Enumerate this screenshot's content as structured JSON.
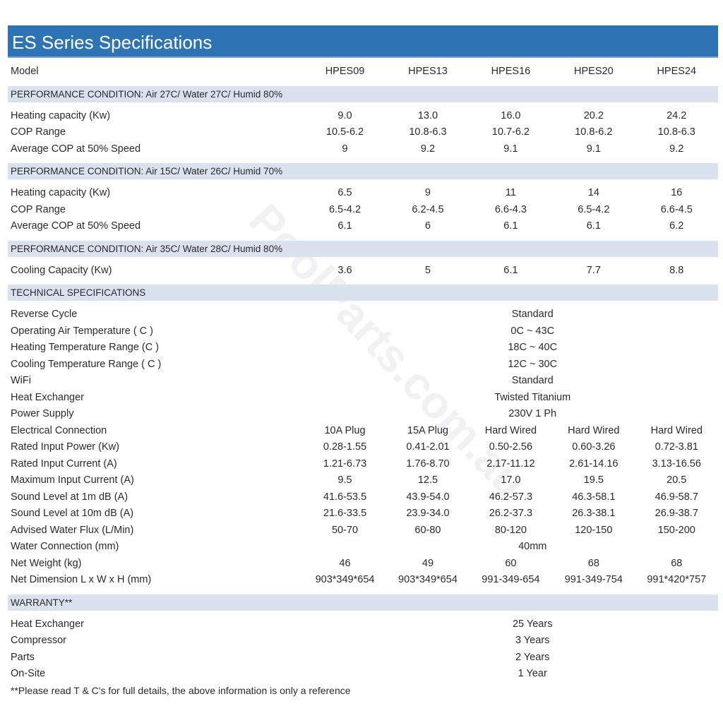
{
  "title": "ES Series Specifications",
  "watermark": "PoolParts.com.au",
  "model_label": "Model",
  "models": [
    "HPES09",
    "HPES13",
    "HPES16",
    "HPES20",
    "HPES24"
  ],
  "sections": [
    {
      "heading": "PERFORMANCE CONDITION: Air 27C/ Water 27C/ Humid 80%",
      "rows": [
        {
          "label": "Heating capacity (Kw)",
          "values": [
            "9.0",
            "13.0",
            "16.0",
            "20.2",
            "24.2"
          ]
        },
        {
          "label": "COP Range",
          "values": [
            "10.5-6.2",
            "10.8-6.3",
            "10.7-6.2",
            "10.8-6.2",
            "10.8-6.3"
          ]
        },
        {
          "label": "Average COP at 50% Speed",
          "values": [
            "9",
            "9.2",
            "9.1",
            "9.1",
            "9.2"
          ]
        }
      ]
    },
    {
      "heading": "PERFORMANCE CONDITION: Air 15C/ Water 26C/ Humid 70%",
      "rows": [
        {
          "label": "Heating capacity (Kw)",
          "values": [
            "6.5",
            "9",
            "11",
            "14",
            "16"
          ]
        },
        {
          "label": "COP Range",
          "values": [
            "6.5-4.2",
            "6.2-4.5",
            "6.6-4.3",
            "6.5-4.2",
            "6.6-4.5"
          ]
        },
        {
          "label": "Average COP at 50% Speed",
          "values": [
            "6.1",
            "6",
            "6.1",
            "6.1",
            "6.2"
          ]
        }
      ]
    },
    {
      "heading": "PERFORMANCE CONDITION: Air 35C/ Water 28C/ Humid 80%",
      "rows": [
        {
          "label": "Cooling Capacity (Kw)",
          "values": [
            "3.6",
            "5",
            "6.1",
            "7.7",
            "8.8"
          ]
        }
      ]
    },
    {
      "heading": "TECHNICAL SPECIFICATIONS",
      "rows": [
        {
          "label": "Reverse Cycle",
          "all": "Standard"
        },
        {
          "label": "Operating Air Temperature ( C )",
          "all": "0C ~ 43C"
        },
        {
          "label": "Heating Temperature Range (C )",
          "all": "18C ~ 40C"
        },
        {
          "label": "Cooling Temperature Range ( C )",
          "all": "12C ~ 30C"
        },
        {
          "label": "WiFi",
          "all": "Standard"
        },
        {
          "label": "Heat Exchanger",
          "all": "Twisted Titanium"
        },
        {
          "label": "Power Supply",
          "all": "230V 1 Ph"
        },
        {
          "label": "Electrical Connection",
          "values": [
            "10A Plug",
            "15A Plug",
            "Hard Wired",
            "Hard Wired",
            "Hard Wired"
          ]
        },
        {
          "label": "Rated Input Power (Kw)",
          "values": [
            "0.28-1.55",
            "0.41-2.01",
            "0.50-2.56",
            "0.60-3.26",
            "0.72-3.81"
          ]
        },
        {
          "label": "Rated Input Current (A)",
          "values": [
            "1.21-6.73",
            "1.76-8.70",
            "2.17-11.12",
            "2.61-14.16",
            "3.13-16.56"
          ]
        },
        {
          "label": "Maximum Input Current (A)",
          "values": [
            "9.5",
            "12.5",
            "17.0",
            "19.5",
            "20.5"
          ]
        },
        {
          "label": "Sound Level at 1m dB (A)",
          "values": [
            "41.6-53.5",
            "43.9-54.0",
            "46.2-57.3",
            "46.3-58.1",
            "46.9-58.7"
          ]
        },
        {
          "label": "Sound Level at 10m dB (A)",
          "values": [
            "21.6-33.5",
            "23.9-34.0",
            "26.2-37.3",
            "26.3-38.1",
            "26.9-38.7"
          ]
        },
        {
          "label": "Advised Water Flux (L/Min)",
          "values": [
            "50-70",
            "60-80",
            "80-120",
            "120-150",
            "150-200"
          ]
        },
        {
          "label": "Water Connection (mm)",
          "all": "40mm"
        },
        {
          "label": "Net Weight (kg)",
          "values": [
            "46",
            "49",
            "60",
            "68",
            "68"
          ]
        },
        {
          "label": "Net Dimension L x W x H (mm)",
          "values": [
            "903*349*654",
            "903*349*654",
            "991-349-654",
            "991-349-754",
            "991*420*757"
          ]
        }
      ]
    },
    {
      "heading": "WARRANTY**",
      "rows": [
        {
          "label": "Heat Exchanger",
          "all": "25 Years"
        },
        {
          "label": "Compressor",
          "all": "3 Years"
        },
        {
          "label": "Parts",
          "all": "2 Years"
        },
        {
          "label": "On-Site",
          "all": "1 Year"
        }
      ]
    }
  ],
  "footnote": "**Please read T & C's for full details, the above information is only a reference",
  "colors": {
    "title_bar": "#2e74b5",
    "section_bar": "#dae2ef"
  }
}
